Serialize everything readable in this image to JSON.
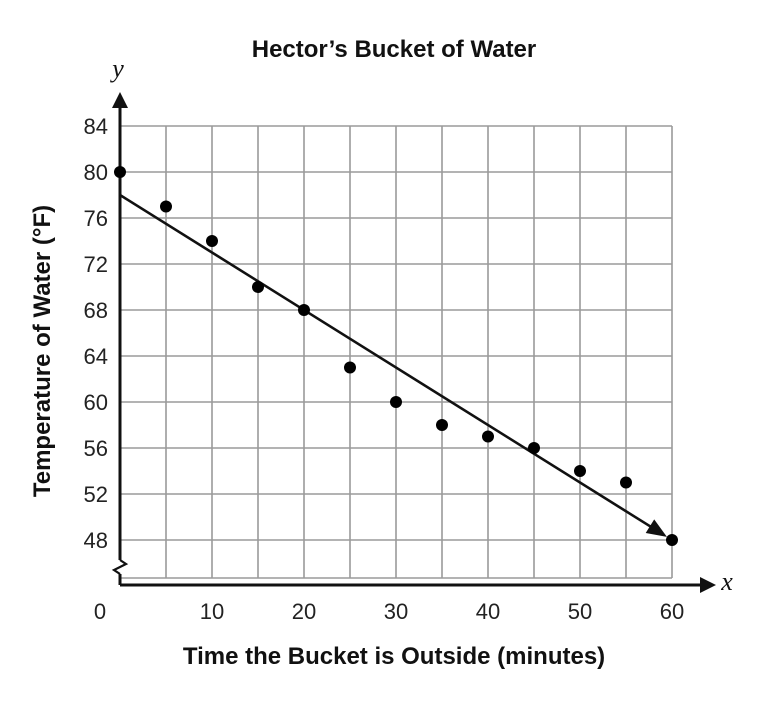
{
  "chart_data": {
    "type": "scatter",
    "title": "Hector’s Bucket of Water",
    "xlabel": "Time the Bucket is Outside (minutes)",
    "ylabel": "Temperature of Water (°F)",
    "x_axis_var": "x",
    "y_axis_var": "y",
    "xlim": [
      0,
      60
    ],
    "ylim": [
      48,
      84
    ],
    "y_axis_break": true,
    "grid": true,
    "x_grid_step": 5,
    "y_grid_step": 4,
    "x_ticks": [
      0,
      10,
      20,
      30,
      40,
      50,
      60
    ],
    "x_tick_labels": [
      "0",
      "10",
      "20",
      "30",
      "40",
      "50",
      "60"
    ],
    "y_ticks": [
      48,
      52,
      56,
      60,
      64,
      68,
      72,
      76,
      80,
      84
    ],
    "y_tick_labels": [
      "48",
      "52",
      "56",
      "60",
      "64",
      "68",
      "72",
      "76",
      "80",
      "84"
    ],
    "points": [
      {
        "x": 0,
        "y": 80
      },
      {
        "x": 5,
        "y": 77
      },
      {
        "x": 10,
        "y": 74
      },
      {
        "x": 15,
        "y": 70
      },
      {
        "x": 20,
        "y": 68
      },
      {
        "x": 25,
        "y": 63
      },
      {
        "x": 30,
        "y": 60
      },
      {
        "x": 35,
        "y": 58
      },
      {
        "x": 40,
        "y": 57
      },
      {
        "x": 45,
        "y": 56
      },
      {
        "x": 50,
        "y": 54
      },
      {
        "x": 55,
        "y": 53
      },
      {
        "x": 60,
        "y": 48
      }
    ],
    "trend_line": {
      "start": {
        "x": 0,
        "y": 78
      },
      "end": {
        "x": 60,
        "y": 48
      },
      "arrow_at_end": true
    }
  }
}
